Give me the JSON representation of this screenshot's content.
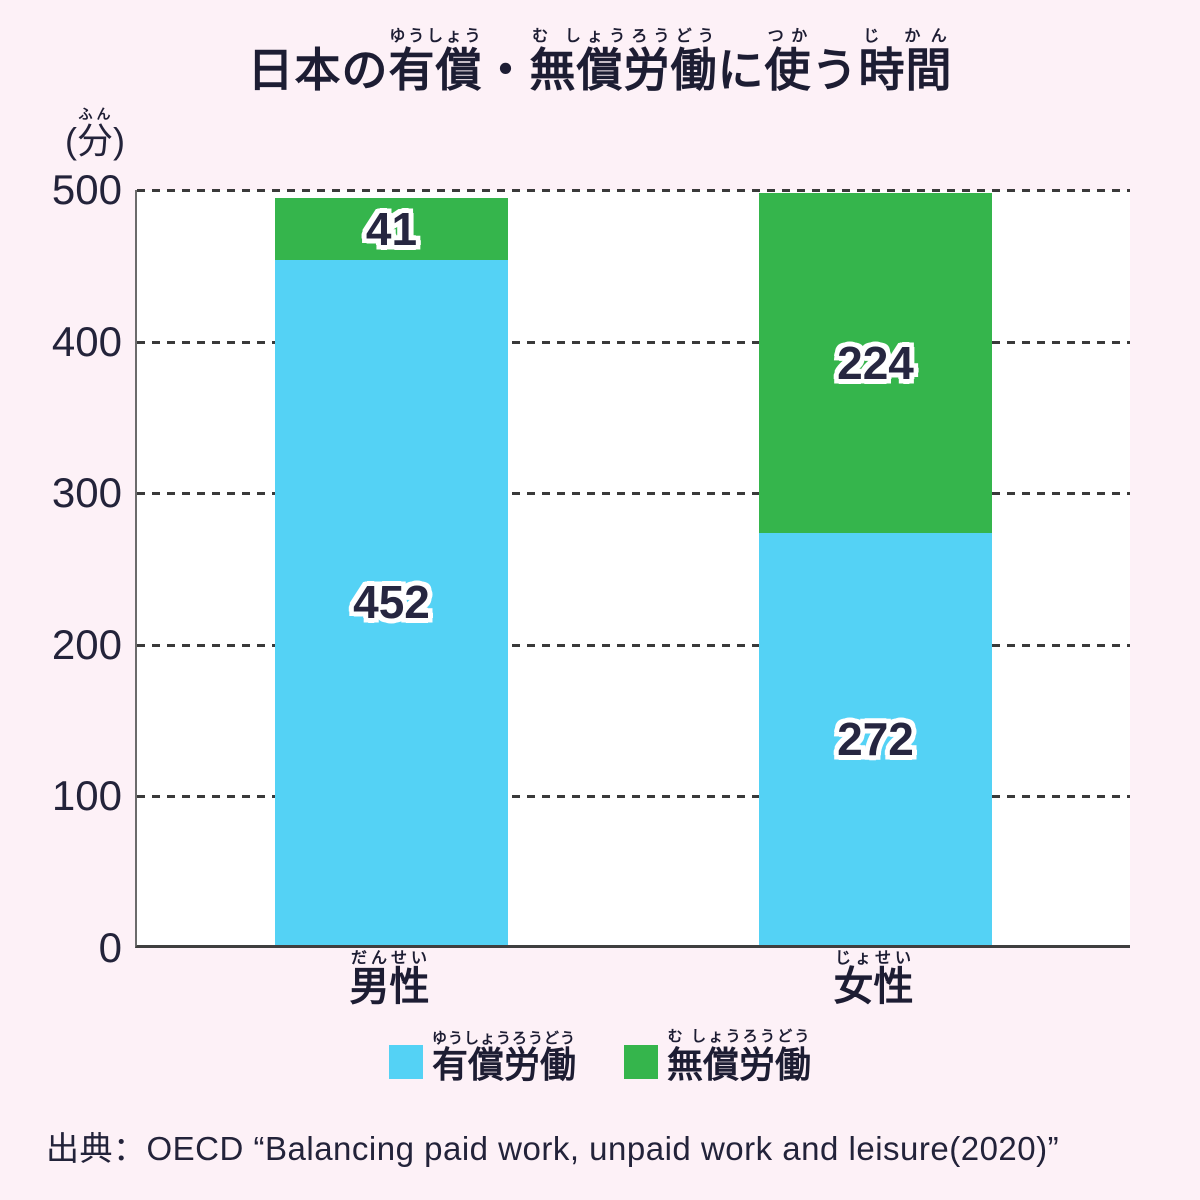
{
  "title": {
    "plain": "日本の有償・無償労働に使う時間",
    "segments": [
      {
        "base": "日本の",
        "ruby": ""
      },
      {
        "base": "有償",
        "ruby": "ゆうしょう"
      },
      {
        "base": "・",
        "ruby": ""
      },
      {
        "base": "無償労働",
        "ruby": "む しょうろうどう"
      },
      {
        "base": "に",
        "ruby": ""
      },
      {
        "base": "使",
        "ruby": "つか"
      },
      {
        "base": "う",
        "ruby": ""
      },
      {
        "base": "時間",
        "ruby": "じ かん"
      }
    ]
  },
  "y_axis": {
    "unit_prefix": "(",
    "unit_base": "分",
    "unit_ruby": "ふん",
    "unit_suffix": ")",
    "tick_labels": [
      "500",
      "400",
      "300",
      "200",
      "100",
      "0"
    ]
  },
  "chart_data": {
    "type": "bar",
    "stacked": true,
    "title": "日本の有償・無償労働に使う時間",
    "ylabel": "(分)",
    "ylim": [
      0,
      500
    ],
    "yticks": [
      0,
      100,
      200,
      300,
      400,
      500
    ],
    "grid": "horizontal dashed, on",
    "legend_position": "bottom center",
    "categories": [
      {
        "base": "男性",
        "ruby": "だんせい"
      },
      {
        "base": "女性",
        "ruby": "じょせい"
      }
    ],
    "series": [
      {
        "name": "有償労働",
        "ruby": "ゆうしょうろうどう",
        "color": "#54d2f5",
        "values": [
          452,
          272
        ]
      },
      {
        "name": "無償労働",
        "ruby": "む しょうろうどう",
        "color": "#35b54c",
        "values": [
          41,
          224
        ]
      }
    ]
  },
  "source": {
    "text": "出典：OECD “Balancing paid work, unpaid work and leisure(2020)”"
  },
  "colors": {
    "background": "#fdf1f7",
    "plot_background": "#ffffff",
    "paid_blue": "#54d2f5",
    "unpaid_green": "#35b54c",
    "text_navy": "#23233a",
    "gridline": "#3a3a3a"
  }
}
